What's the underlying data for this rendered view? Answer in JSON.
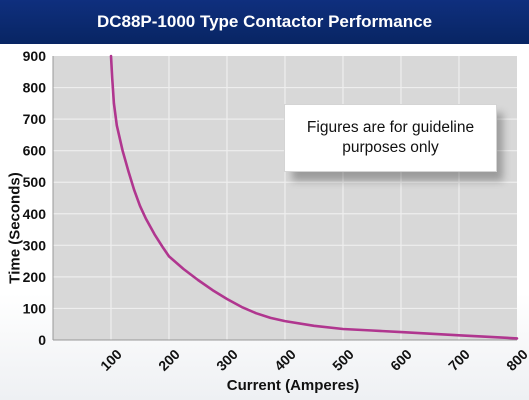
{
  "banner": {
    "title": "DC88P-1000 Type Contactor Performance"
  },
  "note": {
    "text": "Figures are for guideline purposes only"
  },
  "colors": {
    "banner": "#0b2a72",
    "curve": "#b0368f",
    "plot_bg": "#d8d8d8",
    "grid": "#eeeeee"
  },
  "chart_data": {
    "type": "line",
    "title": "DC88P-1000 Type Contactor Performance",
    "xlabel": "Current (Amperes)",
    "ylabel": "Time (Seconds)",
    "xlim": [
      0,
      800
    ],
    "ylim": [
      0,
      900
    ],
    "x_ticks": [
      100,
      200,
      300,
      400,
      500,
      600,
      700,
      800
    ],
    "y_ticks": [
      0,
      100,
      200,
      300,
      400,
      500,
      600,
      700,
      800,
      900
    ],
    "grid": true,
    "series": [
      {
        "x": [
          100,
          102,
          105,
          110,
          120,
          130,
          140,
          150,
          160,
          175,
          190,
          200,
          225,
          250,
          275,
          300,
          325,
          350,
          375,
          400,
          450,
          500,
          550,
          600,
          650,
          700,
          750,
          800
        ],
        "values": [
          900,
          830,
          750,
          680,
          600,
          535,
          475,
          425,
          385,
          335,
          292,
          265,
          225,
          190,
          158,
          130,
          105,
          85,
          70,
          60,
          45,
          35,
          30,
          25,
          20,
          15,
          10,
          5
        ]
      }
    ]
  }
}
